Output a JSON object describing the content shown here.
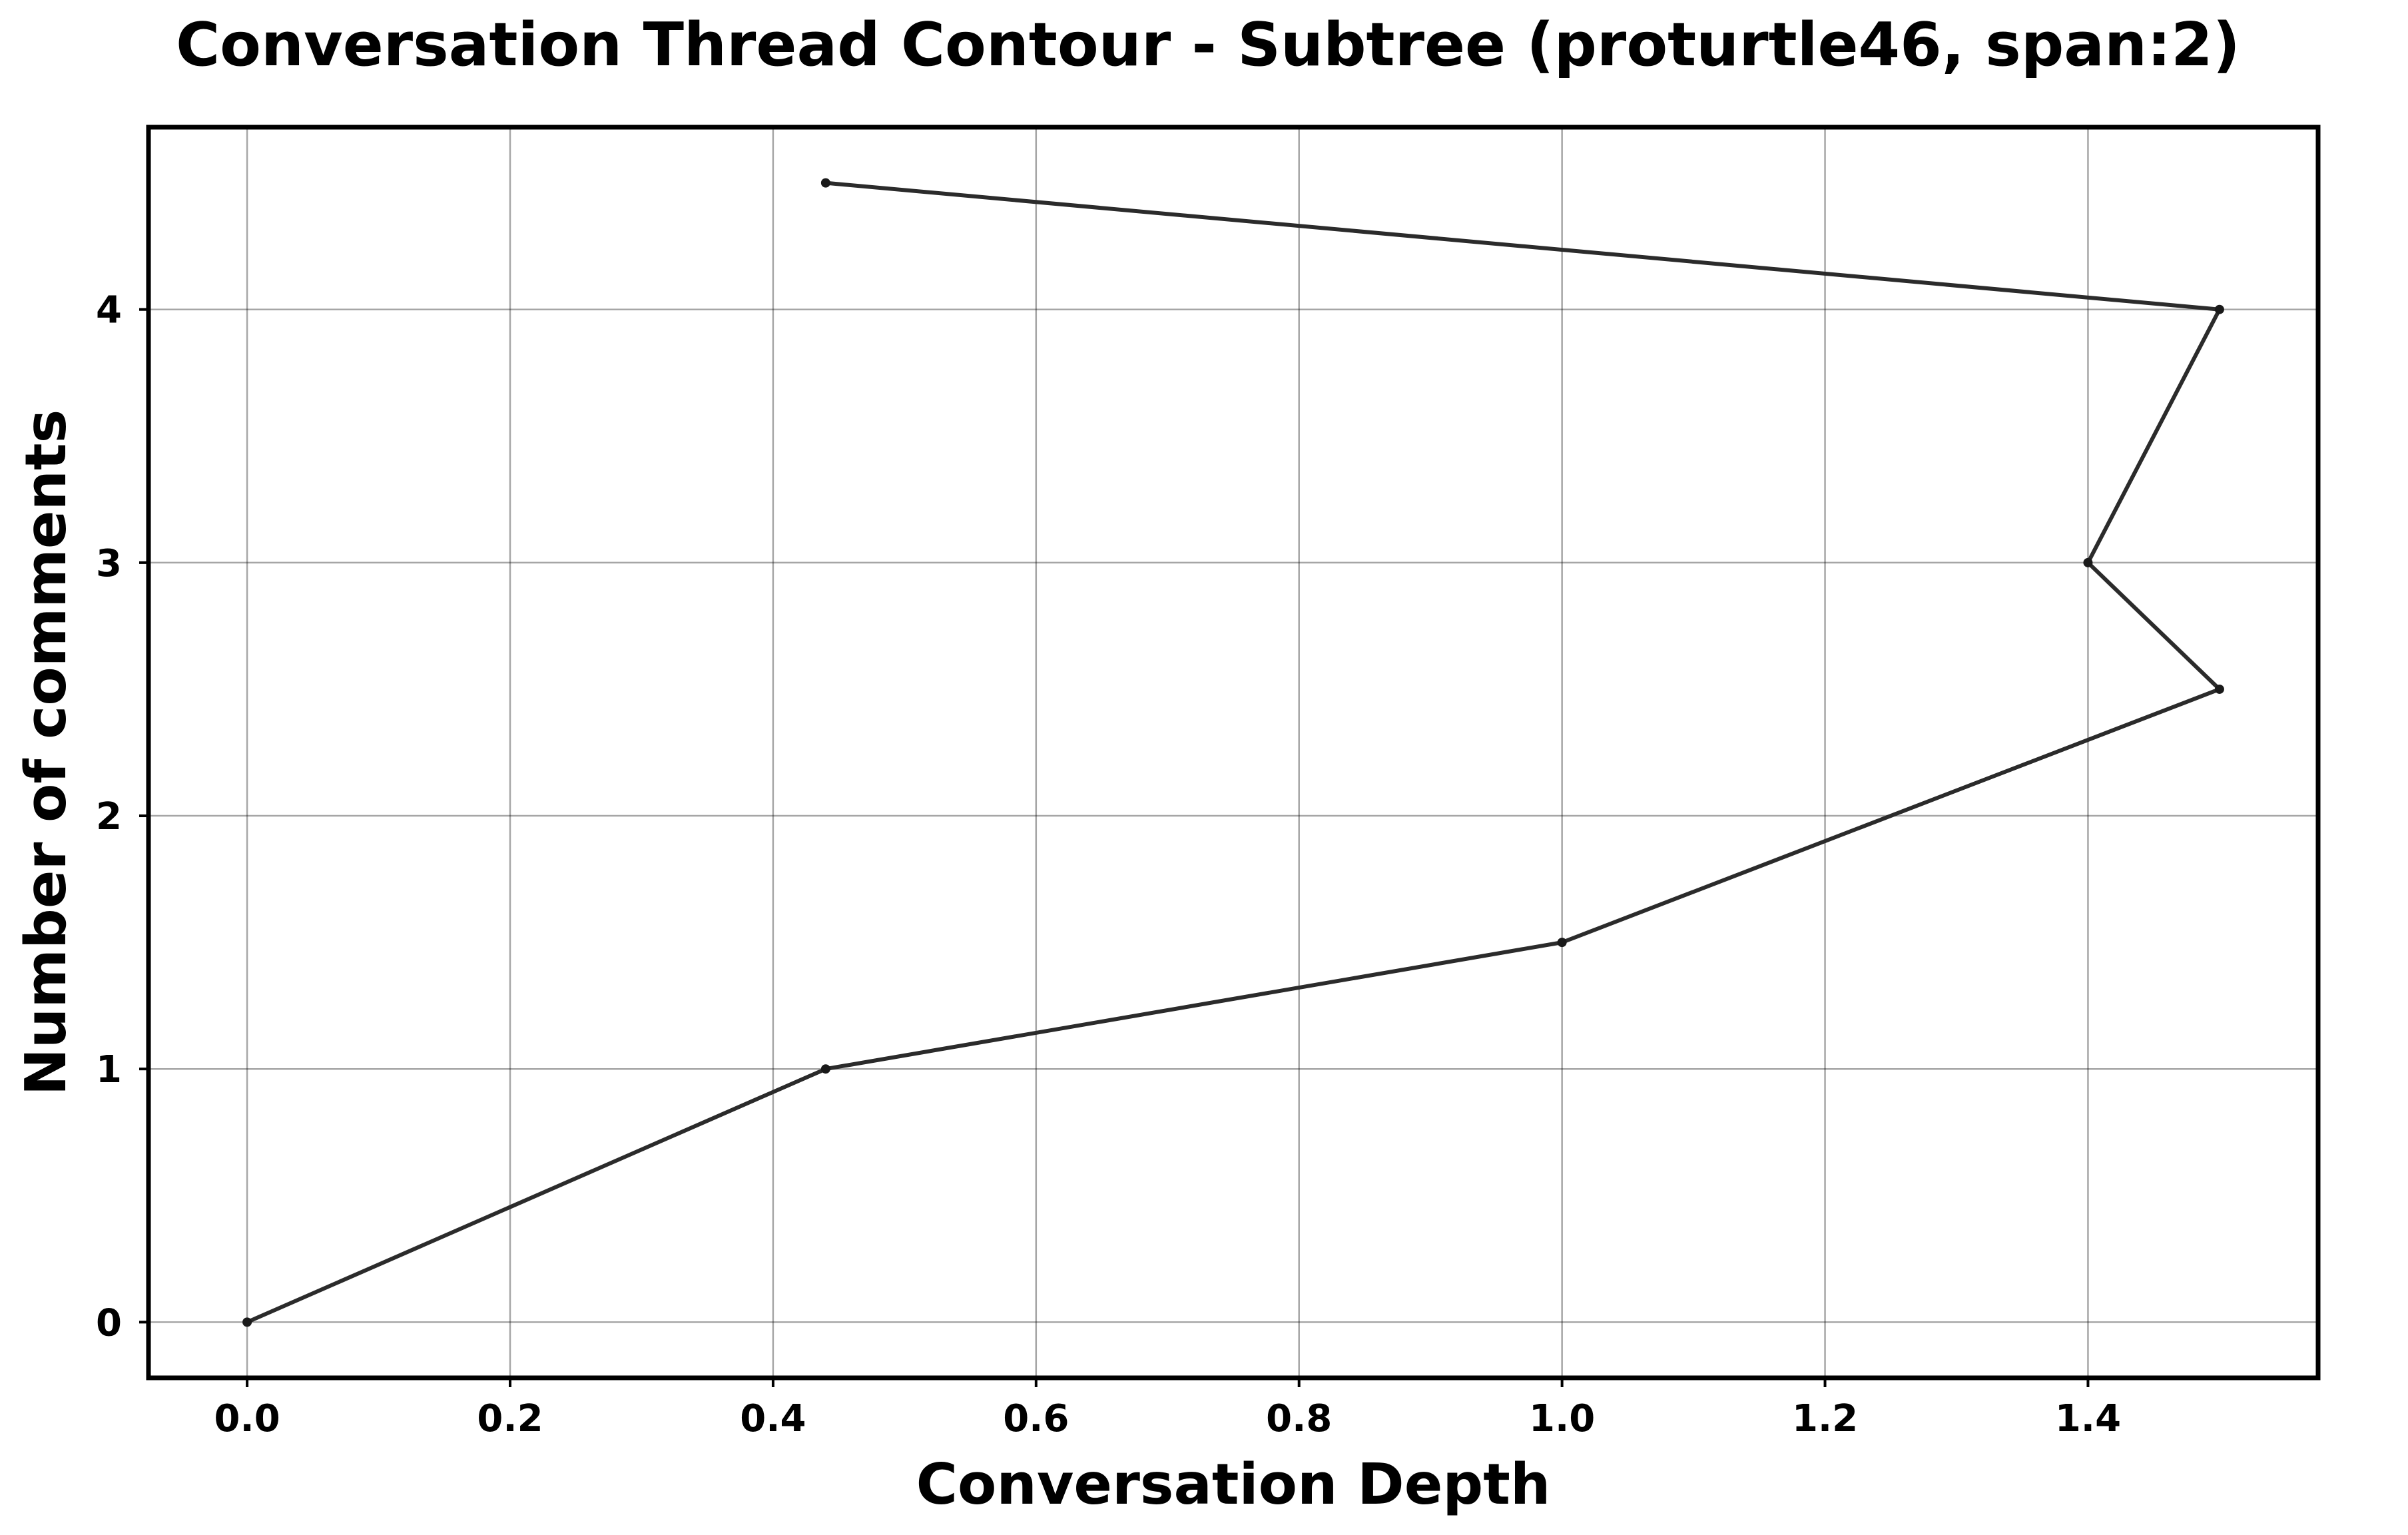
{
  "chart_data": {
    "type": "line",
    "title": "Conversation Thread Contour  - Subtree (proturtle46, span:2)",
    "xlabel": "Conversation Depth",
    "ylabel": "Number of comments",
    "xlim": [
      -0.075,
      1.575
    ],
    "ylim": [
      -0.22,
      4.72
    ],
    "xticks": [
      0.0,
      0.2,
      0.4,
      0.6,
      0.8,
      1.0,
      1.2,
      1.4
    ],
    "xtick_labels": [
      "0.0",
      "0.2",
      "0.4",
      "0.6",
      "0.8",
      "1.0",
      "1.2",
      "1.4"
    ],
    "yticks": [
      0,
      1,
      2,
      3,
      4
    ],
    "ytick_labels": [
      "0",
      "1",
      "2",
      "3",
      "4"
    ],
    "grid": true,
    "legend": false,
    "series": [
      {
        "x": [
          0.0,
          0.44,
          1.0,
          1.5,
          1.4,
          1.5,
          0.44
        ],
        "y": [
          0,
          1,
          1.5,
          2.5,
          3,
          4,
          4.5
        ],
        "color": "#2b2b2b"
      }
    ]
  }
}
